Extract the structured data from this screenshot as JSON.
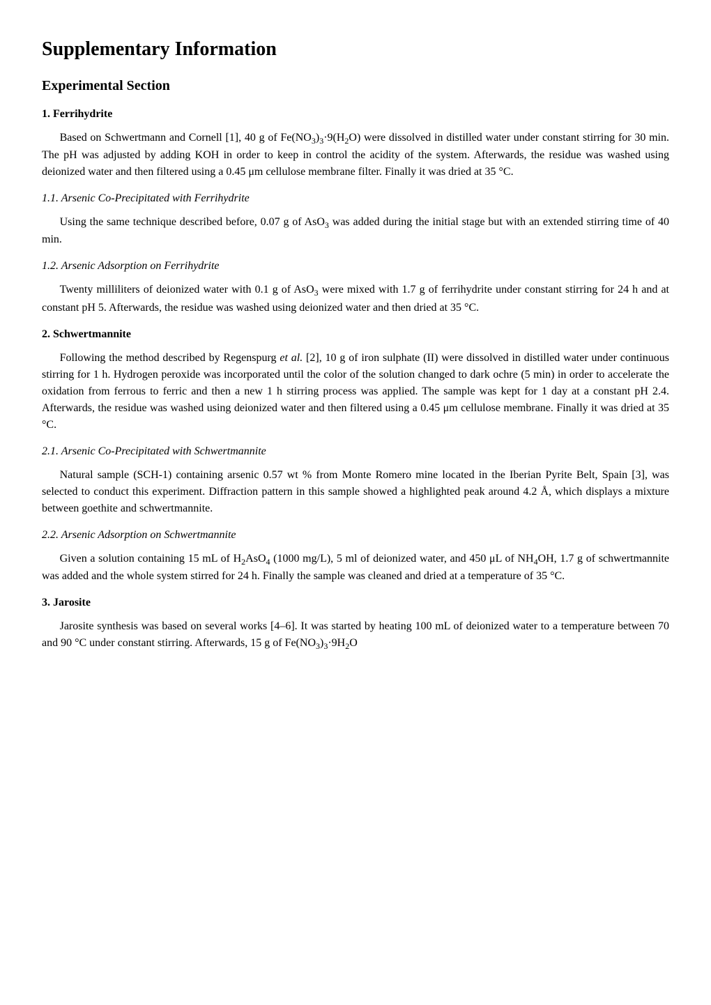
{
  "title": "Supplementary Information",
  "section_heading": "Experimental Section",
  "s1": {
    "heading": "1. Ferrihydrite",
    "p1_a": "Based on Schwertmann and Cornell [1], 40 g of Fe(NO",
    "p1_b": ")",
    "p1_c": "·9(H",
    "p1_d": "O) were dissolved in distilled water under constant stirring for 30 min. The pH was adjusted by adding KOH in order to keep in control the acidity of the system. Afterwards, the residue was washed using deionized water and then filtered using a 0.45 μm cellulose membrane filter. Finally it was dried at 35 °C.",
    "s11": {
      "heading": "1.1. Arsenic Co-Precipitated with Ferrihydrite",
      "p1_a": "Using the same technique described before, 0.07 g of AsO",
      "p1_b": " was added during the initial stage but with an extended stirring time of 40 min."
    },
    "s12": {
      "heading": "1.2. Arsenic Adsorption on Ferrihydrite",
      "p1_a": "Twenty milliliters of deionized water with 0.1 g of AsO",
      "p1_b": " were mixed with 1.7 g of ferrihydrite under constant stirring for 24 h and at constant pH 5. Afterwards, the residue was washed using deionized water and then dried at 35 °C."
    }
  },
  "s2": {
    "heading": "2. Schwertmannite",
    "p1_a": "Following the method described by Regenspurg ",
    "p1_em": "et al.",
    "p1_b": " [2], 10 g of iron sulphate (II) were dissolved in distilled water under continuous stirring for 1 h. Hydrogen peroxide was incorporated until the color of the solution changed to dark ochre (5 min) in order to accelerate the oxidation from ferrous to ferric and then a new 1 h stirring process was applied. The sample was kept for 1 day at a constant pH 2.4. Afterwards, the residue was washed using deionized water and then filtered using a 0.45 μm cellulose membrane. Finally it was dried at 35 °C.",
    "s21": {
      "heading": "2.1. Arsenic Co-Precipitated with Schwertmannite",
      "p1": "Natural sample (SCH-1) containing arsenic 0.57 wt % from Monte Romero mine located in the Iberian Pyrite Belt, Spain [3], was selected to conduct this experiment. Diffraction pattern in this sample showed a highlighted peak around 4.2 Å, which displays a mixture between goethite and schwertmannite."
    },
    "s22": {
      "heading": "2.2. Arsenic Adsorption on Schwertmannite",
      "p1_a": "Given a solution containing 15 mL of H",
      "p1_b": "AsO",
      "p1_c": " (1000 mg/L), 5 ml of deionized water, and 450 μL of NH",
      "p1_d": "OH, 1.7 g of schwertmannite was added and the whole system stirred for 24 h. Finally the sample was cleaned and dried at a temperature of 35 °C."
    }
  },
  "s3": {
    "heading": "3. Jarosite",
    "p1_a": "Jarosite synthesis was based on several works [4–6]. It was started by heating 100 mL of deionized water to a temperature between 70 and 90 °C under constant stirring. Afterwards, 15 g of Fe(NO",
    "p1_b": ")",
    "p1_c": "·9H",
    "p1_d": "O"
  },
  "sub3": "3",
  "sub2": "2",
  "sub4": "4"
}
